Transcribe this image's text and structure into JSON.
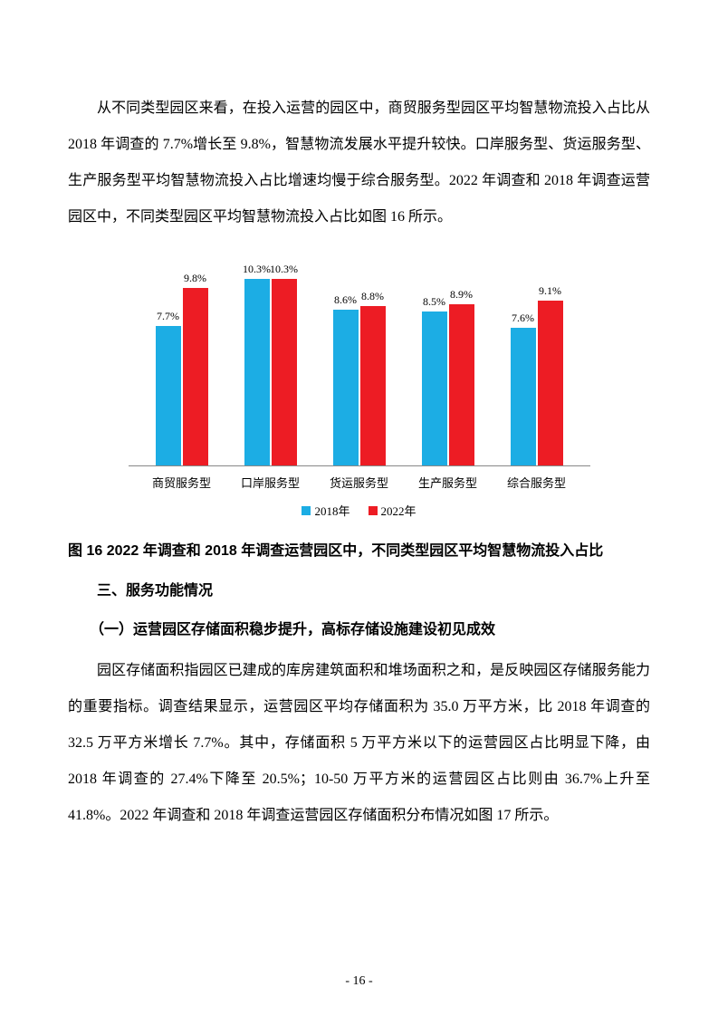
{
  "paragraph1": "从不同类型园区来看，在投入运营的园区中，商贸服务型园区平均智慧物流投入占比从 2018 年调查的 7.7%增长至 9.8%，智慧物流发展水平提升较快。口岸服务型、货运服务型、生产服务型平均智慧物流投入占比增速均慢于综合服务型。2022 年调查和 2018 年调查运营园区中，不同类型园区平均智慧物流投入占比如图 16 所示。",
  "chart": {
    "type": "bar",
    "categories": [
      "商贸服务型",
      "口岸服务型",
      "货运服务型",
      "生产服务型",
      "综合服务型"
    ],
    "series": [
      {
        "name": "2018年",
        "color": "#1cade4",
        "values": [
          7.7,
          10.3,
          8.6,
          8.5,
          7.6
        ],
        "labels": [
          "7.7%",
          "10.3%",
          "8.6%",
          "8.5%",
          "7.6%"
        ]
      },
      {
        "name": "2022年",
        "color": "#ed1c24",
        "values": [
          9.8,
          10.3,
          8.8,
          8.9,
          9.1
        ],
        "labels": [
          "9.8%",
          "10.3%",
          "8.8%",
          "8.9%",
          "9.1%"
        ]
      }
    ],
    "ymax": 11,
    "bar_height_scale": 20
  },
  "caption": "图 16 2022 年调查和 2018 年调查运营园区中，不同类型园区平均智慧物流投入占比",
  "section_title": "三、服务功能情况",
  "subsection_title": "（一）运营园区存储面积稳步提升，高标存储设施建设初见成效",
  "paragraph2": "园区存储面积指园区已建成的库房建筑面积和堆场面积之和，是反映园区存储服务能力的重要指标。调查结果显示，运营园区平均存储面积为 35.0 万平方米，比 2018 年调查的 32.5 万平方米增长 7.7%。其中，存储面积 5 万平方米以下的运营园区占比明显下降，由 2018 年调查的 27.4%下降至 20.5%；10-50 万平方米的运营园区占比则由 36.7%上升至 41.8%。2022 年调查和 2018 年调查运营园区存储面积分布情况如图 17 所示。",
  "page_number": "- 16 -"
}
